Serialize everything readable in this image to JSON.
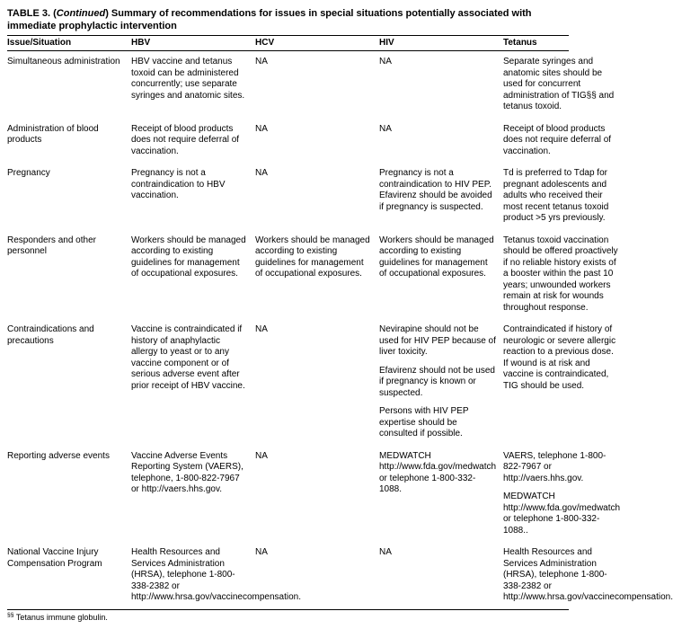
{
  "title_prefix": "TABLE 3. (",
  "title_cont": "Continued",
  "title_suffix": ") Summary of recommendations for issues in special situations potentially associated with immediate prophylactic intervention",
  "headers": {
    "c1": "Issue/Situation",
    "c2": "HBV",
    "c3": "HCV",
    "c4": "HIV",
    "c5": "Tetanus"
  },
  "rows": [
    {
      "c1": [
        "Simultaneous adminis­tration"
      ],
      "c2": [
        "HBV vaccine and tetanus toxoid can be administered concur­rently; use separate syringes and anatomic sites."
      ],
      "c3": [
        "NA"
      ],
      "c4": [
        "NA"
      ],
      "c5": [
        "Separate syringes and anatomic sites should be used for concurrent administration of TIG§§ and tetanus toxoid."
      ]
    },
    {
      "c1": [
        "Administration of blood products"
      ],
      "c2": [
        "Receipt of blood products does not require deferral of vaccination."
      ],
      "c3": [
        "NA"
      ],
      "c4": [
        "NA"
      ],
      "c5": [
        "Receipt of blood products does not require deferral of vaccination."
      ]
    },
    {
      "c1": [
        "Pregnancy"
      ],
      "c2": [
        "Pregnancy is not a contraindication to HBV vaccination."
      ],
      "c3": [
        "NA"
      ],
      "c4": [
        "Pregnancy is not a contraindication to HIV PEP. Efavirenz should be avoided if pregnancy is suspected."
      ],
      "c5": [
        "Td is preferred to Tdap for pregnant adoles­cents and adults who received their most recent tetanus toxoid product >5 yrs previously."
      ]
    },
    {
      "c1": [
        "Responders and other personnel"
      ],
      "c2": [
        "Workers should be managed according to existing guidelines for management of occupational expo­sures."
      ],
      "c3": [
        "Workers should be managed according to existing guidelines for management of occupational expo­sures."
      ],
      "c4": [
        "Workers should be managed according to existing guidelines for management of occupational expo­sures."
      ],
      "c5": [
        "Tetanus toxoid vaccination should be offered proactively if no reliable history exists of a booster within the past 10 years; unwounded workers remain at risk for wounds throughout response."
      ]
    },
    {
      "c1": [
        "Contraindications and precautions"
      ],
      "c2": [
        "Vaccine is contraindi­cated if history of anaphylactic allergy to yeast or to any vaccine component or of serious adverse event after prior receipt of HBV vaccine."
      ],
      "c3": [
        "NA"
      ],
      "c4": [
        "Nevirapine should not be used for HIV PEP because of liver toxicity.",
        "Efavirenz should not be used if pregnancy is known or suspected.",
        "Persons with HIV PEP expertise should be consulted if possible."
      ],
      "c5": [
        "Contraindicated if history of neurologic or severe allergic reaction to a previous dose. If wound is at risk and vaccine is contraindi­cated, TIG should be used."
      ]
    },
    {
      "c1": [
        "Reporting adverse events"
      ],
      "c2": [
        "Vaccine Adverse Events Reporting System (VAERS), telephone, 1-800-822-7967 or http://vaers.hhs.gov."
      ],
      "c3": [
        "NA"
      ],
      "c4": [
        "MEDWATCH http://www.fda.gov/medwatch or telephone 1-800-332-1088."
      ],
      "c5": [
        "VAERS, telephone 1-800-822-7967 or http://vaers.hhs.gov.",
        "MEDWATCH http://www.fda.gov/medwatch or telephone 1-800-332-1088.."
      ]
    },
    {
      "c1": [
        "National Vaccine Injury Compensation Program"
      ],
      "c2": [
        "Health Resources and Services Administration (HRSA), telephone 1-800-338-2382 or http://www.hrsa.gov/vaccinecompensation."
      ],
      "c3": [
        "NA"
      ],
      "c4": [
        "NA"
      ],
      "c5": [
        "Health Resources and Services Administration (HRSA), telephone 1-800-338-2382 or http://www.hrsa.gov/vaccinecompensation."
      ]
    }
  ],
  "footnote_mark": "§§",
  "footnote_text": "Tetanus immune globulin."
}
